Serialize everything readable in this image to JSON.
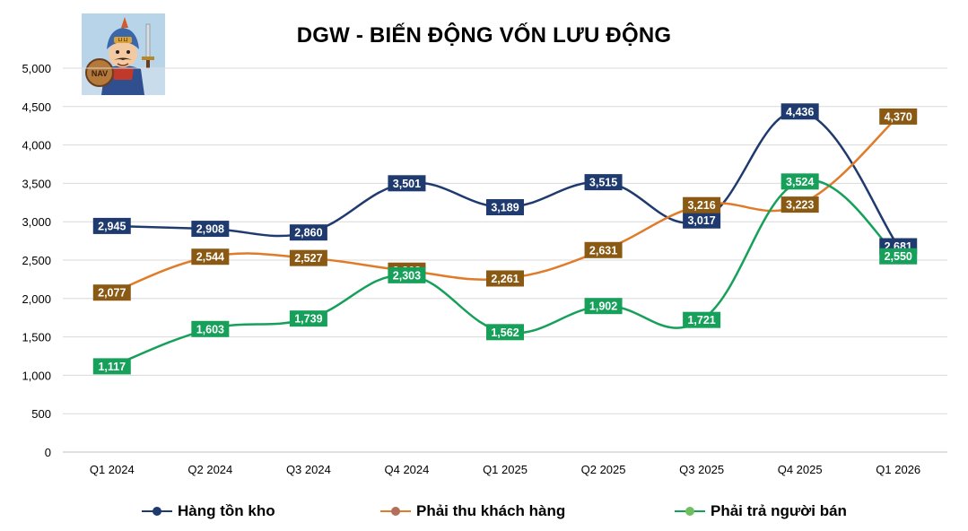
{
  "chart_data": {
    "type": "line",
    "title": "DGW - BIẾN ĐỘNG VỐN LƯU ĐỘNG",
    "xlabel": "",
    "ylabel": "",
    "categories": [
      "Q1 2024",
      "Q2 2024",
      "Q3 2024",
      "Q4 2024",
      "Q1 2025",
      "Q2 2025",
      "Q3 2025",
      "Q4 2025",
      "Q1 2026"
    ],
    "ylim": [
      0,
      5000
    ],
    "yticks": [
      0,
      500,
      1000,
      1500,
      2000,
      2500,
      3000,
      3500,
      4000,
      4500,
      5000
    ],
    "ytick_labels": [
      "0",
      "500",
      "1,000",
      "1,500",
      "2,000",
      "2,500",
      "3,000",
      "3,500",
      "4,000",
      "4,500",
      "5,000"
    ],
    "grid": true,
    "legend_position": "bottom",
    "series": [
      {
        "name": "Hàng tồn kho",
        "color": "#1f3a6e",
        "values": [
          2945,
          2908,
          2860,
          3501,
          3189,
          3515,
          3017,
          4436,
          2681
        ],
        "labels": [
          "2,945",
          "2,908",
          "2,860",
          "3,501",
          "3,189",
          "3,515",
          "3,017",
          "4,436",
          "2,681"
        ]
      },
      {
        "name": "Phải thu khách hàng",
        "color": "#e07b2a",
        "label_color": "#8a5a14",
        "values": [
          2077,
          2544,
          2527,
          2363,
          2261,
          2631,
          3216,
          3223,
          4370
        ],
        "labels": [
          "2,077",
          "2,544",
          "2,527",
          "2,363",
          "2,261",
          "2,631",
          "3,216",
          "3,223",
          "4,370"
        ]
      },
      {
        "name": "Phải trả người bán",
        "color": "#17a05a",
        "values": [
          1117,
          1603,
          1739,
          2303,
          1562,
          1902,
          1721,
          3524,
          2550
        ],
        "labels": [
          "1,117",
          "1,603",
          "1,739",
          "2,303",
          "1,562",
          "1,902",
          "1,721",
          "3,524",
          "2,550"
        ]
      }
    ]
  },
  "logo": {
    "icon": "warrior-mascot-icon",
    "shield_text": "NAV",
    "helmet_text": "LI LỊ"
  }
}
